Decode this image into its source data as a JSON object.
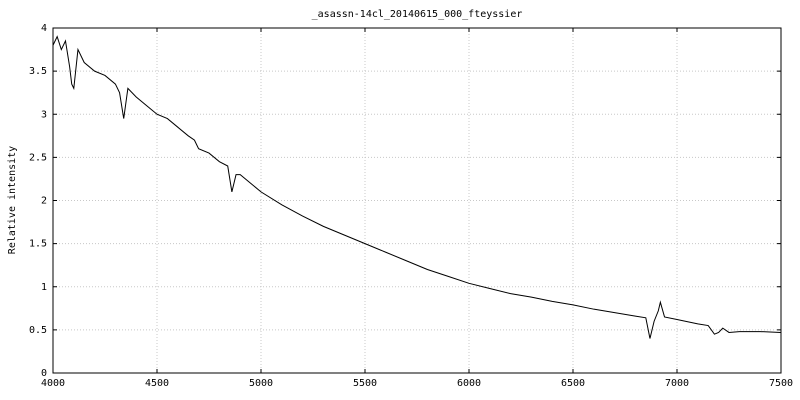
{
  "chart_data": {
    "type": "line",
    "title": "_asassn-14cl_20140615_000_fteyssier",
    "y_label": "Relative intensity",
    "x": [
      4000,
      4020,
      4040,
      4060,
      4080,
      4090,
      4100,
      4120,
      4150,
      4200,
      4250,
      4300,
      4320,
      4340,
      4360,
      4400,
      4450,
      4500,
      4550,
      4600,
      4650,
      4680,
      4700,
      4750,
      4800,
      4840,
      4860,
      4880,
      4900,
      4950,
      5000,
      5100,
      5200,
      5300,
      5400,
      5500,
      5600,
      5700,
      5800,
      5900,
      6000,
      6100,
      6200,
      6300,
      6400,
      6500,
      6600,
      6700,
      6800,
      6850,
      6870,
      6890,
      6910,
      6920,
      6940,
      7000,
      7100,
      7150,
      7180,
      7200,
      7220,
      7250,
      7300,
      7400,
      7500
    ],
    "values": [
      3.8,
      3.9,
      3.75,
      3.85,
      3.55,
      3.35,
      3.3,
      3.75,
      3.6,
      3.5,
      3.45,
      3.35,
      3.25,
      2.95,
      3.3,
      3.2,
      3.1,
      3.0,
      2.95,
      2.85,
      2.75,
      2.7,
      2.6,
      2.55,
      2.45,
      2.4,
      2.1,
      2.3,
      2.3,
      2.2,
      2.1,
      1.95,
      1.82,
      1.7,
      1.6,
      1.5,
      1.4,
      1.3,
      1.2,
      1.12,
      1.04,
      0.98,
      0.92,
      0.88,
      0.83,
      0.79,
      0.74,
      0.7,
      0.66,
      0.64,
      0.4,
      0.6,
      0.72,
      0.82,
      0.65,
      0.62,
      0.57,
      0.55,
      0.45,
      0.47,
      0.52,
      0.47,
      0.48,
      0.48,
      0.47
    ],
    "color": "#000000",
    "xlim": [
      4000,
      7500
    ],
    "xticks": [
      4000,
      4500,
      5000,
      5500,
      6000,
      6500,
      7000,
      7500
    ],
    "ylim": [
      0,
      4
    ],
    "yticks": [
      0,
      0.5,
      1,
      1.5,
      2,
      2.5,
      3,
      3.5,
      4
    ],
    "grid": true
  }
}
